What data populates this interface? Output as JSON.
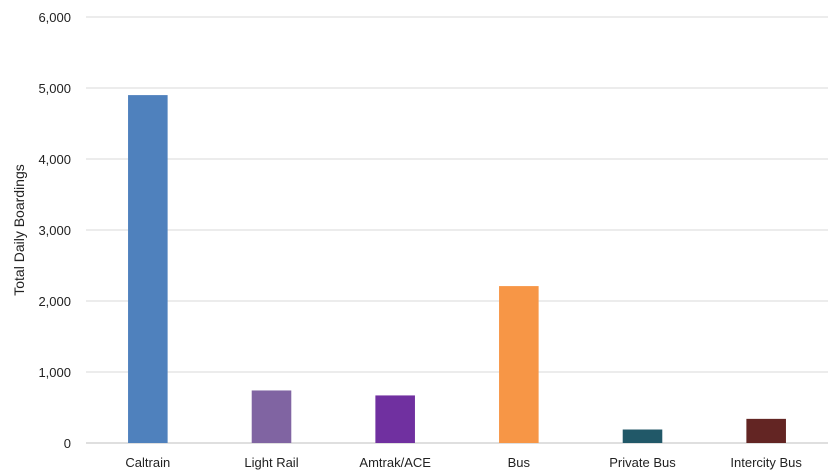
{
  "chart_data": {
    "type": "bar",
    "title": "",
    "xlabel": "",
    "ylabel": "Total Daily Boardings",
    "ylim": [
      0,
      6000
    ],
    "yticks": [
      "0",
      "1,000",
      "2,000",
      "3,000",
      "4,000",
      "5,000",
      "6,000"
    ],
    "ytick_values": [
      0,
      1000,
      2000,
      3000,
      4000,
      5000,
      6000
    ],
    "grid": true,
    "legend": "none",
    "categories": [
      "Caltrain",
      "Light Rail",
      "Amtrak/ACE",
      "Bus",
      "Private Bus",
      "Intercity Bus"
    ],
    "values": [
      4900,
      740,
      670,
      2210,
      190,
      340
    ],
    "colors": [
      "#4f81bd",
      "#8064a2",
      "#7030a0",
      "#f79646",
      "#215868",
      "#632523"
    ]
  }
}
